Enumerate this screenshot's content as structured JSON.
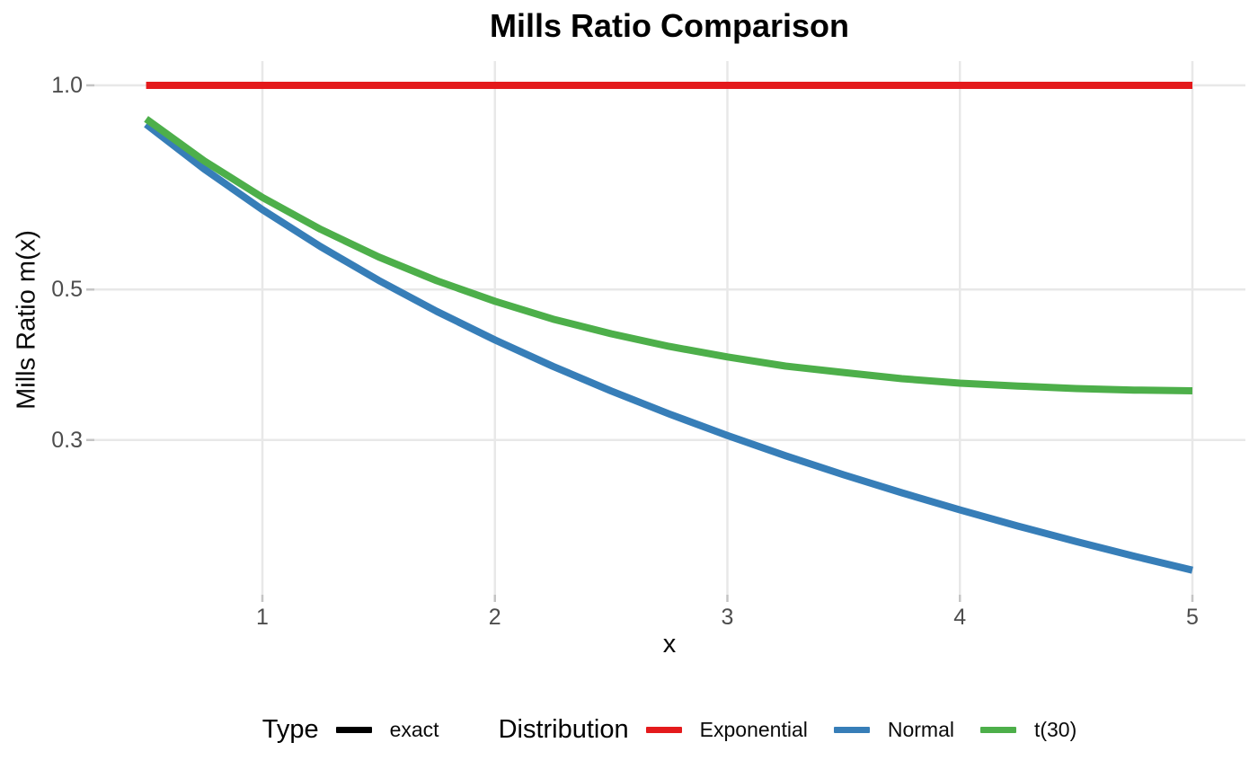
{
  "title": "Mills Ratio Comparison",
  "axes": {
    "x_title": "x",
    "y_title": "Mills Ratio m(x)",
    "x_tick_labels": [
      "1",
      "2",
      "3",
      "4",
      "5"
    ],
    "y_tick_labels": [
      "1.0",
      "0.5",
      "0.3"
    ]
  },
  "colors": {
    "exponential": "#E41A1C",
    "normal": "#377EB8",
    "t30": "#4DAF4A",
    "exact_type": "#000000",
    "gridline": "#E8E8E8",
    "axis_tick": "#C4C4C4",
    "tick_text": "#4D4D4D"
  },
  "legend": {
    "groups": [
      {
        "title": "Type",
        "items": [
          {
            "label": "exact",
            "color": "#000000"
          }
        ]
      },
      {
        "title": "Distribution",
        "items": [
          {
            "label": "Exponential",
            "color": "#E41A1C"
          },
          {
            "label": "Normal",
            "color": "#377EB8"
          },
          {
            "label": "t(30)",
            "color": "#4DAF4A"
          }
        ]
      }
    ]
  },
  "chart_data": {
    "type": "line",
    "title": "Mills Ratio Comparison",
    "xlabel": "x",
    "ylabel": "Mills Ratio m(x)",
    "x_ticks": [
      1,
      2,
      3,
      4,
      5
    ],
    "y_ticks": [
      1.0,
      0.5,
      0.3
    ],
    "y_scale": "log10",
    "xlim": [
      0.5,
      5
    ],
    "ylim": [
      0.193,
      1.0
    ],
    "grid": "major-only",
    "legend_position": "bottom",
    "linetype_legend": {
      "title": "Type",
      "entries": [
        "exact"
      ]
    },
    "color_legend_title": "Distribution",
    "x": [
      0.5,
      0.75,
      1.0,
      1.25,
      1.5,
      1.75,
      2.0,
      2.25,
      2.5,
      2.75,
      3.0,
      3.25,
      3.5,
      3.75,
      4.0,
      4.25,
      4.5,
      4.75,
      5.0
    ],
    "series": [
      {
        "name": "Exponential",
        "color": "#E41A1C",
        "type": "exact",
        "values": [
          1.0,
          1.0,
          1.0,
          1.0,
          1.0,
          1.0,
          1.0,
          1.0,
          1.0,
          1.0,
          1.0,
          1.0,
          1.0,
          1.0,
          1.0,
          1.0,
          1.0,
          1.0,
          1.0
        ]
      },
      {
        "name": "Normal",
        "color": "#377EB8",
        "type": "exact",
        "values": [
          0.8763,
          0.7526,
          0.6557,
          0.5784,
          0.5158,
          0.4643,
          0.4214,
          0.3852,
          0.3543,
          0.3277,
          0.3046,
          0.2844,
          0.2666,
          0.2508,
          0.2366,
          0.224,
          0.2126,
          0.2022,
          0.1928
        ]
      },
      {
        "name": "t(30)",
        "color": "#4DAF4A",
        "type": "exact",
        "values": [
          0.8921,
          0.7738,
          0.6834,
          0.6135,
          0.5585,
          0.5151,
          0.4805,
          0.4522,
          0.4303,
          0.4122,
          0.3977,
          0.3856,
          0.3773,
          0.3695,
          0.3638,
          0.3603,
          0.3573,
          0.3554,
          0.3545
        ]
      }
    ]
  }
}
